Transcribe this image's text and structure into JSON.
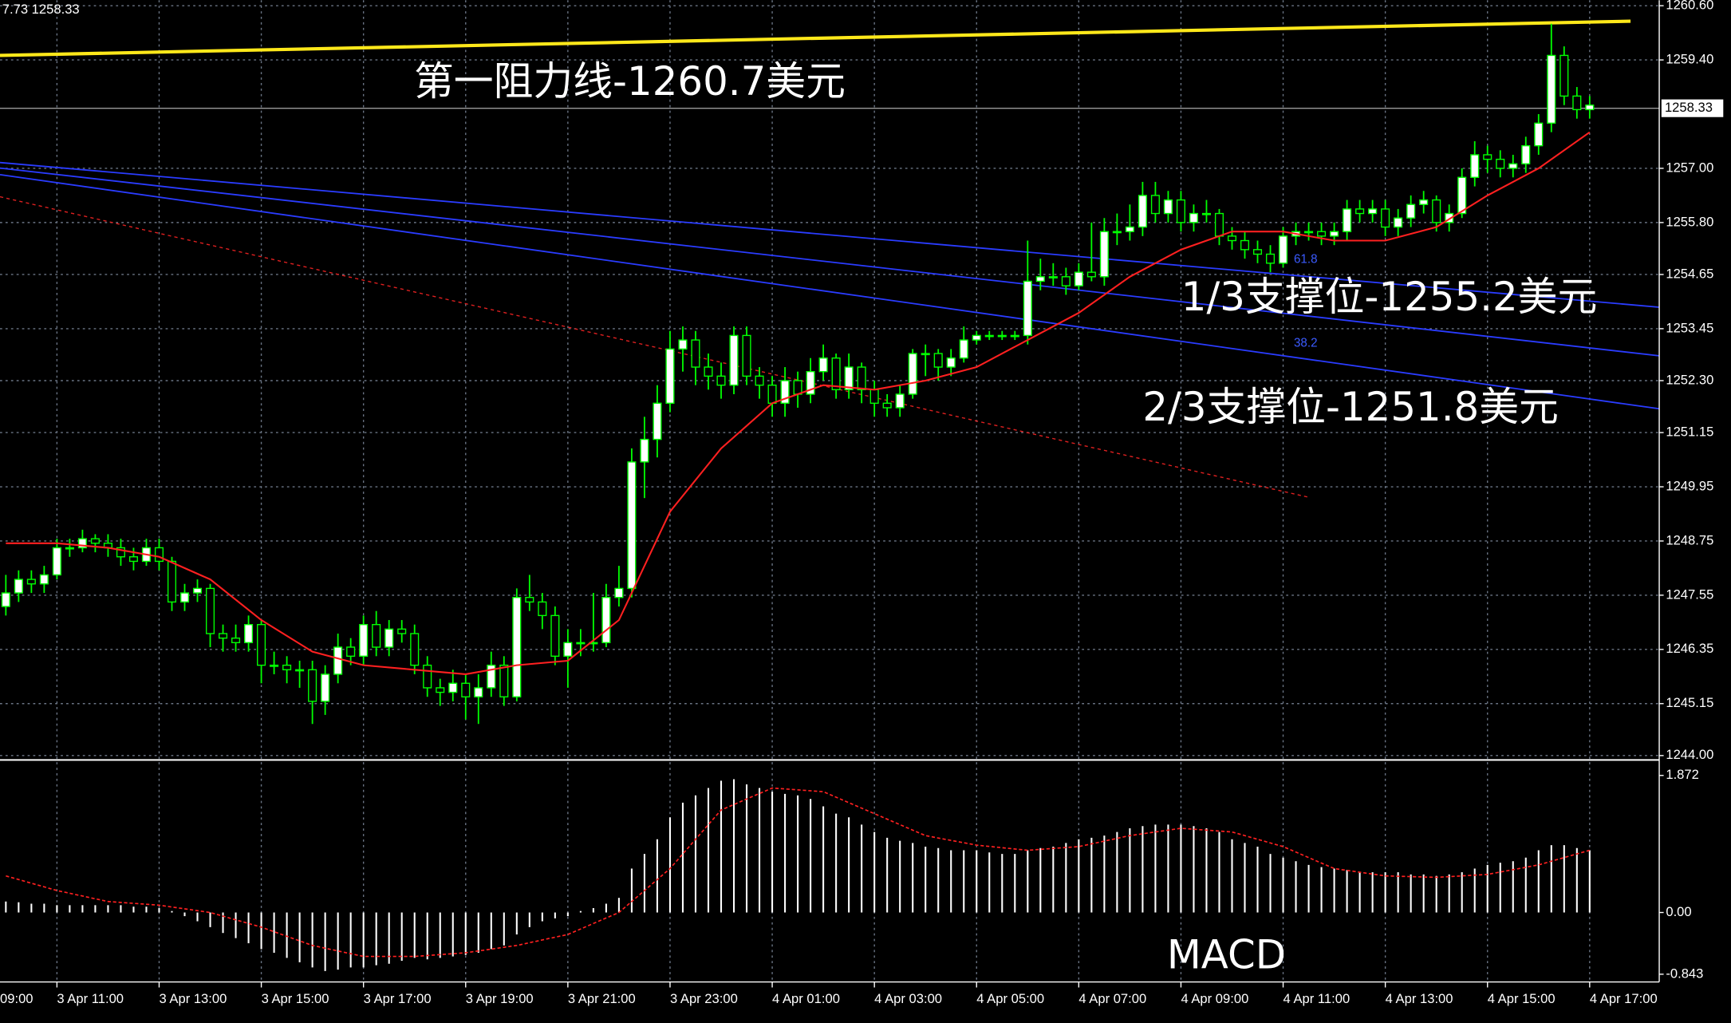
{
  "chart_data": [
    {
      "type": "candlestick",
      "info": "7.73 1258.33",
      "annotations": [
        "第一阻力线-1260.7美元",
        "1/3支撑位-1255.2美元",
        "2/3支撑位-1251.8美元"
      ],
      "fib_labels": [
        "61.8",
        "38.2"
      ],
      "up_color": "#ffffff",
      "down_color": "#000000",
      "wick_color": "#00ff00",
      "grid": true,
      "ylim": [
        1244.0,
        1260.6
      ],
      "yticks": [
        {
          "value": 1260.6,
          "label": "1260.60"
        },
        {
          "value": 1259.4,
          "label": "1259.40"
        },
        {
          "value": 1257.0,
          "label": "1257.00"
        },
        {
          "value": 1255.8,
          "label": "1255.80"
        },
        1254.65,
        1253.45,
        {
          "value": 1252.3,
          "label": "1252.30"
        },
        1251.15,
        1249.95,
        1248.75,
        1247.55,
        1246.35,
        1245.15,
        {
          "value": 1244.0,
          "label": "1244.00"
        }
      ],
      "last_price": {
        "value": 1258.33,
        "label": "1258.33"
      },
      "xlim": [
        -4,
        124
      ],
      "xticks": [
        {
          "value": -4,
          "label": "09:00"
        },
        {
          "value": 4,
          "label": "3 Apr 11:00"
        },
        {
          "value": 12,
          "label": "3 Apr 13:00"
        },
        {
          "value": 20,
          "label": "3 Apr 15:00"
        },
        {
          "value": 28,
          "label": "3 Apr 17:00"
        },
        {
          "value": 36,
          "label": "3 Apr 19:00"
        },
        {
          "value": 44,
          "label": "3 Apr 21:00"
        },
        {
          "value": 52,
          "label": "3 Apr 23:00"
        },
        {
          "value": 60,
          "label": "4 Apr 01:00"
        },
        {
          "value": 68,
          "label": "4 Apr 03:00"
        },
        {
          "value": 76,
          "label": "4 Apr 05:00"
        },
        {
          "value": 84,
          "label": "4 Apr 07:00"
        },
        {
          "value": 92,
          "label": "4 Apr 09:00"
        },
        {
          "value": 100,
          "label": "4 Apr 11:00"
        },
        {
          "value": 108,
          "label": "4 Apr 13:00"
        },
        {
          "value": 116,
          "label": "4 Apr 15:00"
        },
        {
          "value": 124,
          "label": "4 Apr 17:00"
        }
      ],
      "ohlc": [
        [
          1247.3,
          1248.0,
          1247.1,
          1247.6
        ],
        [
          1247.6,
          1248.1,
          1247.4,
          1247.9
        ],
        [
          1247.9,
          1248.1,
          1247.6,
          1247.8
        ],
        [
          1247.8,
          1248.2,
          1247.6,
          1248.0
        ],
        [
          1248.0,
          1248.8,
          1247.9,
          1248.6
        ],
        [
          1248.6,
          1248.8,
          1248.4,
          1248.6
        ],
        [
          1248.6,
          1249.0,
          1248.5,
          1248.8
        ],
        [
          1248.8,
          1248.9,
          1248.5,
          1248.7
        ],
        [
          1248.7,
          1248.9,
          1248.4,
          1248.6
        ],
        [
          1248.6,
          1248.8,
          1248.2,
          1248.4
        ],
        [
          1248.4,
          1248.6,
          1248.1,
          1248.3
        ],
        [
          1248.3,
          1248.8,
          1248.2,
          1248.6
        ],
        [
          1248.6,
          1248.8,
          1248.1,
          1248.3
        ],
        [
          1248.3,
          1248.4,
          1247.2,
          1247.4
        ],
        [
          1247.4,
          1247.8,
          1247.2,
          1247.6
        ],
        [
          1247.6,
          1247.9,
          1247.4,
          1247.7
        ],
        [
          1247.7,
          1247.8,
          1246.4,
          1246.7
        ],
        [
          1246.7,
          1246.9,
          1246.3,
          1246.6
        ],
        [
          1246.6,
          1246.9,
          1246.3,
          1246.5
        ],
        [
          1246.5,
          1247.1,
          1246.3,
          1246.9
        ],
        [
          1246.9,
          1247.0,
          1245.6,
          1246.0
        ],
        [
          1246.0,
          1246.3,
          1245.8,
          1246.0
        ],
        [
          1246.0,
          1246.2,
          1245.6,
          1245.9
        ],
        [
          1245.9,
          1246.1,
          1245.5,
          1245.9
        ],
        [
          1245.9,
          1246.1,
          1244.7,
          1245.2
        ],
        [
          1245.2,
          1246.0,
          1244.9,
          1245.8
        ],
        [
          1245.8,
          1246.7,
          1245.6,
          1246.4
        ],
        [
          1246.4,
          1246.6,
          1246.0,
          1246.2
        ],
        [
          1246.2,
          1247.1,
          1246.0,
          1246.9
        ],
        [
          1246.9,
          1247.2,
          1246.2,
          1246.4
        ],
        [
          1246.4,
          1247.0,
          1246.2,
          1246.8
        ],
        [
          1246.8,
          1247.0,
          1246.5,
          1246.7
        ],
        [
          1246.7,
          1246.9,
          1245.8,
          1246.0
        ],
        [
          1246.0,
          1246.2,
          1245.3,
          1245.5
        ],
        [
          1245.5,
          1245.7,
          1245.1,
          1245.4
        ],
        [
          1245.4,
          1245.9,
          1245.2,
          1245.6
        ],
        [
          1245.6,
          1245.8,
          1244.8,
          1245.3
        ],
        [
          1245.3,
          1245.8,
          1244.7,
          1245.5
        ],
        [
          1245.5,
          1246.3,
          1245.3,
          1246.0
        ],
        [
          1246.0,
          1246.2,
          1245.1,
          1245.3
        ],
        [
          1245.3,
          1247.7,
          1245.2,
          1247.5
        ],
        [
          1247.5,
          1248.0,
          1247.2,
          1247.4
        ],
        [
          1247.4,
          1247.6,
          1246.8,
          1247.1
        ],
        [
          1247.1,
          1247.3,
          1246.0,
          1246.2
        ],
        [
          1246.2,
          1246.8,
          1245.5,
          1246.5
        ],
        [
          1246.5,
          1246.8,
          1246.2,
          1246.5
        ],
        [
          1246.5,
          1247.6,
          1246.3,
          1246.5
        ],
        [
          1246.5,
          1247.8,
          1246.4,
          1247.5
        ],
        [
          1247.5,
          1248.2,
          1247.3,
          1247.7
        ],
        [
          1247.7,
          1250.8,
          1247.5,
          1250.5
        ],
        [
          1250.5,
          1251.5,
          1249.7,
          1251.0
        ],
        [
          1251.0,
          1252.2,
          1250.6,
          1251.8
        ],
        [
          1251.8,
          1253.4,
          1251.6,
          1253.0
        ],
        [
          1253.0,
          1253.5,
          1252.5,
          1253.2
        ],
        [
          1253.2,
          1253.4,
          1252.2,
          1252.6
        ],
        [
          1252.6,
          1252.9,
          1252.1,
          1252.4
        ],
        [
          1252.4,
          1252.7,
          1251.9,
          1252.2
        ],
        [
          1252.2,
          1253.5,
          1252.0,
          1253.3
        ],
        [
          1253.3,
          1253.5,
          1252.2,
          1252.4
        ],
        [
          1252.4,
          1252.6,
          1251.9,
          1252.2
        ],
        [
          1252.2,
          1252.4,
          1251.5,
          1251.8
        ],
        [
          1251.8,
          1252.6,
          1251.5,
          1252.3
        ],
        [
          1252.3,
          1252.5,
          1251.7,
          1252.0
        ],
        [
          1252.0,
          1252.8,
          1251.8,
          1252.5
        ],
        [
          1252.5,
          1253.1,
          1252.3,
          1252.8
        ],
        [
          1252.8,
          1252.9,
          1251.9,
          1252.1
        ],
        [
          1252.1,
          1252.9,
          1251.9,
          1252.6
        ],
        [
          1252.6,
          1252.7,
          1251.8,
          1252.1
        ],
        [
          1252.1,
          1252.3,
          1251.5,
          1251.8
        ],
        [
          1251.8,
          1252.0,
          1251.5,
          1251.7
        ],
        [
          1251.7,
          1252.2,
          1251.5,
          1252.0
        ],
        [
          1252.0,
          1253.0,
          1251.9,
          1252.9
        ],
        [
          1252.9,
          1253.1,
          1252.4,
          1252.9
        ],
        [
          1252.9,
          1253.0,
          1252.3,
          1252.6
        ],
        [
          1252.6,
          1253.0,
          1252.4,
          1252.8
        ],
        [
          1252.8,
          1253.5,
          1252.7,
          1253.2
        ],
        [
          1253.2,
          1253.4,
          1253.1,
          1253.3
        ],
        [
          1253.3,
          1253.4,
          1253.2,
          1253.3
        ],
        [
          1253.3,
          1253.4,
          1253.2,
          1253.3
        ],
        [
          1253.3,
          1253.4,
          1253.2,
          1253.3
        ],
        [
          1253.3,
          1255.4,
          1253.1,
          1254.5
        ],
        [
          1254.5,
          1255.0,
          1254.3,
          1254.6
        ],
        [
          1254.6,
          1254.9,
          1254.4,
          1254.6
        ],
        [
          1254.6,
          1254.8,
          1254.2,
          1254.4
        ],
        [
          1254.4,
          1254.9,
          1254.3,
          1254.7
        ],
        [
          1254.7,
          1255.8,
          1254.5,
          1254.6
        ],
        [
          1254.6,
          1255.9,
          1254.4,
          1255.6
        ],
        [
          1255.6,
          1256.0,
          1255.3,
          1255.6
        ],
        [
          1255.6,
          1256.2,
          1255.4,
          1255.7
        ],
        [
          1255.7,
          1256.7,
          1255.5,
          1256.4
        ],
        [
          1256.4,
          1256.7,
          1255.8,
          1256.0
        ],
        [
          1256.0,
          1256.5,
          1255.8,
          1256.3
        ],
        [
          1256.3,
          1256.5,
          1255.6,
          1255.8
        ],
        [
          1255.8,
          1256.2,
          1255.6,
          1256.0
        ],
        [
          1256.0,
          1256.3,
          1255.8,
          1256.0
        ],
        [
          1256.0,
          1256.1,
          1255.3,
          1255.5
        ],
        [
          1255.5,
          1255.7,
          1255.2,
          1255.4
        ],
        [
          1255.4,
          1255.6,
          1255.0,
          1255.2
        ],
        [
          1255.2,
          1255.4,
          1254.9,
          1255.1
        ],
        [
          1255.1,
          1255.3,
          1254.7,
          1254.9
        ],
        [
          1254.9,
          1255.7,
          1254.8,
          1255.5
        ],
        [
          1255.5,
          1255.8,
          1255.3,
          1255.6
        ],
        [
          1255.6,
          1255.8,
          1255.4,
          1255.6
        ],
        [
          1255.6,
          1255.8,
          1255.3,
          1255.5
        ],
        [
          1255.5,
          1255.8,
          1255.3,
          1255.6
        ],
        [
          1255.6,
          1256.3,
          1255.4,
          1256.1
        ],
        [
          1256.1,
          1256.3,
          1255.8,
          1256.0
        ],
        [
          1256.0,
          1256.3,
          1255.8,
          1256.1
        ],
        [
          1256.1,
          1256.3,
          1255.5,
          1255.7
        ],
        [
          1255.7,
          1256.1,
          1255.5,
          1255.9
        ],
        [
          1255.9,
          1256.4,
          1255.7,
          1256.2
        ],
        [
          1256.2,
          1256.5,
          1256.0,
          1256.3
        ],
        [
          1256.3,
          1256.4,
          1255.6,
          1255.8
        ],
        [
          1255.8,
          1256.2,
          1255.6,
          1256.0
        ],
        [
          1256.0,
          1257.0,
          1255.9,
          1256.8
        ],
        [
          1256.8,
          1257.6,
          1256.6,
          1257.3
        ],
        [
          1257.3,
          1257.5,
          1256.9,
          1257.2
        ],
        [
          1257.2,
          1257.4,
          1256.8,
          1257.0
        ],
        [
          1257.0,
          1257.3,
          1256.8,
          1257.1
        ],
        [
          1257.1,
          1257.7,
          1256.9,
          1257.5
        ],
        [
          1257.5,
          1258.2,
          1257.3,
          1258.0
        ],
        [
          1258.0,
          1260.2,
          1257.8,
          1259.5
        ],
        [
          1259.5,
          1259.7,
          1258.4,
          1258.6
        ],
        [
          1258.6,
          1258.8,
          1258.1,
          1258.3
        ],
        [
          1258.3,
          1258.6,
          1258.1,
          1258.4
        ]
      ],
      "ma": {
        "color": "#ff2020",
        "x": [
          0,
          4,
          8,
          12,
          16,
          20,
          24,
          28,
          32,
          36,
          40,
          44,
          48,
          52,
          56,
          60,
          64,
          68,
          72,
          76,
          80,
          84,
          88,
          92,
          96,
          100,
          104,
          108,
          112,
          116,
          120,
          124
        ],
        "values": [
          1248.7,
          1248.7,
          1248.6,
          1248.4,
          1247.9,
          1247.0,
          1246.3,
          1246.0,
          1245.9,
          1245.8,
          1246.0,
          1246.1,
          1247.0,
          1249.4,
          1250.8,
          1251.8,
          1252.2,
          1252.1,
          1252.3,
          1252.6,
          1253.2,
          1253.8,
          1254.6,
          1255.2,
          1255.6,
          1255.6,
          1255.4,
          1255.4,
          1255.7,
          1256.4,
          1257.0,
          1257.8
        ]
      }
    },
    {
      "type": "macd",
      "title": "MACD",
      "hist_color": "#ffffff",
      "ylim": [
        -0.843,
        1.872
      ],
      "yticks": [
        1.872,
        {
          "value": 0,
          "label": "0.00"
        },
        -0.843
      ],
      "histogram": [
        0.15,
        0.14,
        0.12,
        0.12,
        0.1,
        0.1,
        0.1,
        0.1,
        0.1,
        0.1,
        0.08,
        0.08,
        0.06,
        0.02,
        -0.05,
        -0.12,
        -0.2,
        -0.28,
        -0.35,
        -0.42,
        -0.5,
        -0.55,
        -0.62,
        -0.68,
        -0.75,
        -0.8,
        -0.78,
        -0.75,
        -0.75,
        -0.72,
        -0.7,
        -0.66,
        -0.62,
        -0.64,
        -0.62,
        -0.6,
        -0.58,
        -0.55,
        -0.5,
        -0.45,
        -0.3,
        -0.2,
        -0.12,
        -0.08,
        -0.05,
        0.02,
        0.06,
        0.12,
        0.2,
        0.6,
        0.8,
        1.0,
        1.3,
        1.5,
        1.6,
        1.7,
        1.8,
        1.82,
        1.75,
        1.7,
        1.65,
        1.62,
        1.6,
        1.55,
        1.45,
        1.35,
        1.3,
        1.2,
        1.1,
        1.02,
        0.98,
        0.95,
        0.9,
        0.88,
        0.85,
        0.85,
        0.85,
        0.82,
        0.8,
        0.8,
        0.85,
        0.88,
        0.9,
        0.95,
        1.0,
        1.02,
        1.05,
        1.1,
        1.15,
        1.18,
        1.2,
        1.2,
        1.2,
        1.18,
        1.15,
        1.1,
        1.0,
        0.95,
        0.9,
        0.8,
        0.75,
        0.7,
        0.65,
        0.62,
        0.6,
        0.58,
        0.55,
        0.55,
        0.55,
        0.55,
        0.52,
        0.52,
        0.5,
        0.52,
        0.55,
        0.6,
        0.65,
        0.68,
        0.7,
        0.75,
        0.85,
        0.92,
        0.92,
        0.88,
        0.85
      ],
      "signal": {
        "color": "#ff2020",
        "x": [
          0,
          4,
          8,
          12,
          16,
          20,
          24,
          28,
          32,
          36,
          40,
          44,
          48,
          52,
          56,
          60,
          64,
          68,
          72,
          76,
          80,
          84,
          88,
          92,
          96,
          100,
          104,
          108,
          112,
          116,
          120,
          124
        ],
        "values": [
          0.5,
          0.3,
          0.15,
          0.1,
          0.0,
          -0.2,
          -0.45,
          -0.6,
          -0.6,
          -0.55,
          -0.45,
          -0.3,
          0.0,
          0.6,
          1.4,
          1.7,
          1.65,
          1.35,
          1.05,
          0.92,
          0.85,
          0.9,
          1.05,
          1.15,
          1.1,
          0.9,
          0.6,
          0.5,
          0.48,
          0.52,
          0.65,
          0.85
        ]
      }
    }
  ]
}
